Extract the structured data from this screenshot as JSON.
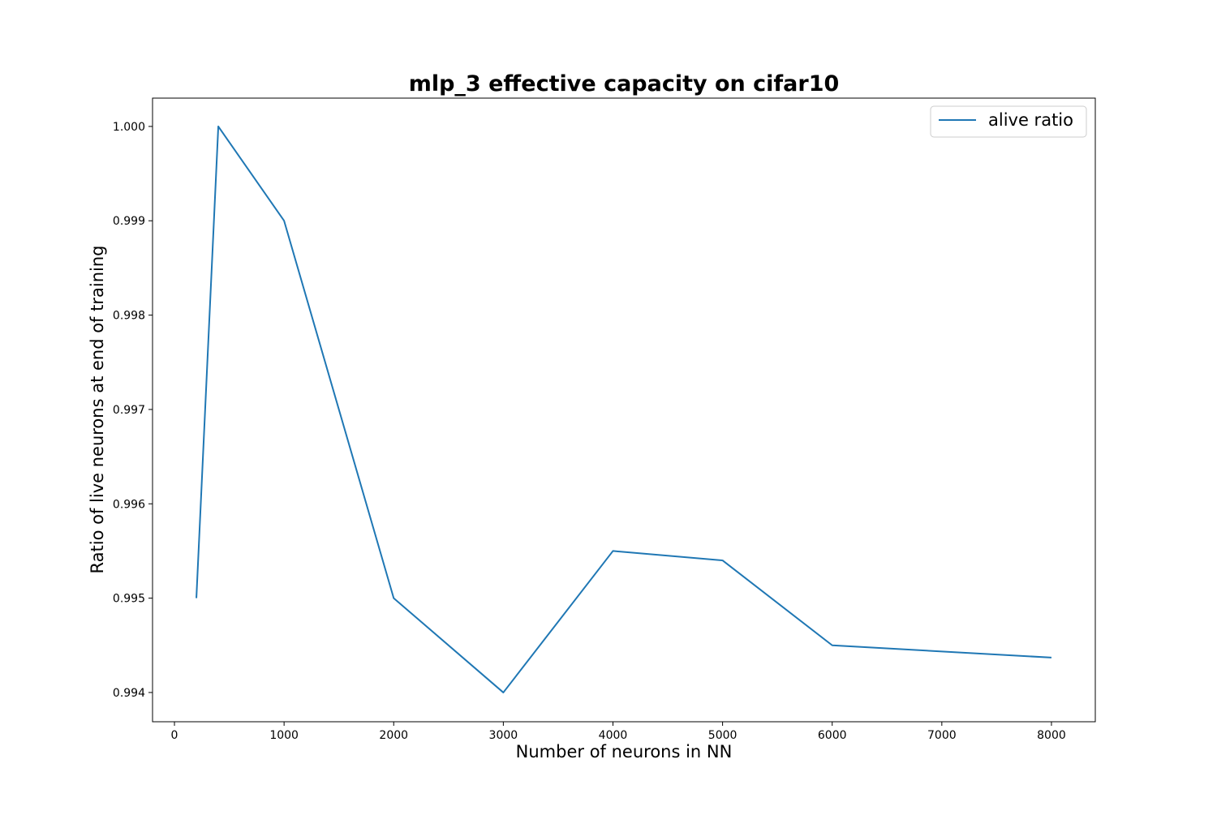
{
  "chart_data": {
    "type": "line",
    "title": "mlp_3 effective capacity on cifar10",
    "xlabel": "Number of neurons in NN",
    "ylabel": "Ratio of live neurons at end of training",
    "xlim": [
      -200,
      8400
    ],
    "ylim": [
      0.99369,
      1.0003
    ],
    "x_ticks": [
      0,
      1000,
      2000,
      3000,
      4000,
      5000,
      6000,
      7000,
      8000
    ],
    "x_tick_labels": [
      "0",
      "1000",
      "2000",
      "3000",
      "4000",
      "5000",
      "6000",
      "7000",
      "8000"
    ],
    "y_ticks": [
      0.994,
      0.995,
      0.996,
      0.997,
      0.998,
      0.999,
      1.0
    ],
    "y_tick_labels": [
      "0.994",
      "0.995",
      "0.996",
      "0.997",
      "0.998",
      "0.999",
      "1.000"
    ],
    "grid": false,
    "legend_position": "top-right",
    "series": [
      {
        "name": "alive ratio",
        "color": "#1f77b4",
        "x": [
          200,
          400,
          1000,
          2000,
          3000,
          4000,
          5000,
          6000,
          8000
        ],
        "y": [
          0.995,
          1.0,
          0.999,
          0.995,
          0.994,
          0.9955,
          0.9954,
          0.9945,
          0.99437
        ]
      }
    ]
  }
}
